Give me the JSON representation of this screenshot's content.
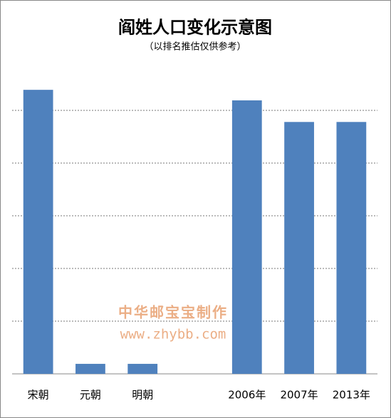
{
  "chart_data": {
    "type": "bar",
    "title": "阎姓人口变化示意图",
    "subtitle": "（以排名推估仅供参考）",
    "categories": [
      "宋朝",
      "元朝",
      "明朝",
      null,
      "2006年",
      "2007年",
      "2013年"
    ],
    "values": [
      5.39,
      0.19,
      0.19,
      null,
      5.19,
      4.78,
      4.78
    ],
    "color": "#4f81bd",
    "ylim": [
      0,
      6
    ],
    "yticks": [
      0,
      1,
      2,
      3,
      4,
      5
    ],
    "grid": true,
    "show_tick_labels": false,
    "watermark": [
      "中华邮宝宝制作",
      "www.zhybb.com"
    ],
    "watermark_color": "#e8a070"
  }
}
